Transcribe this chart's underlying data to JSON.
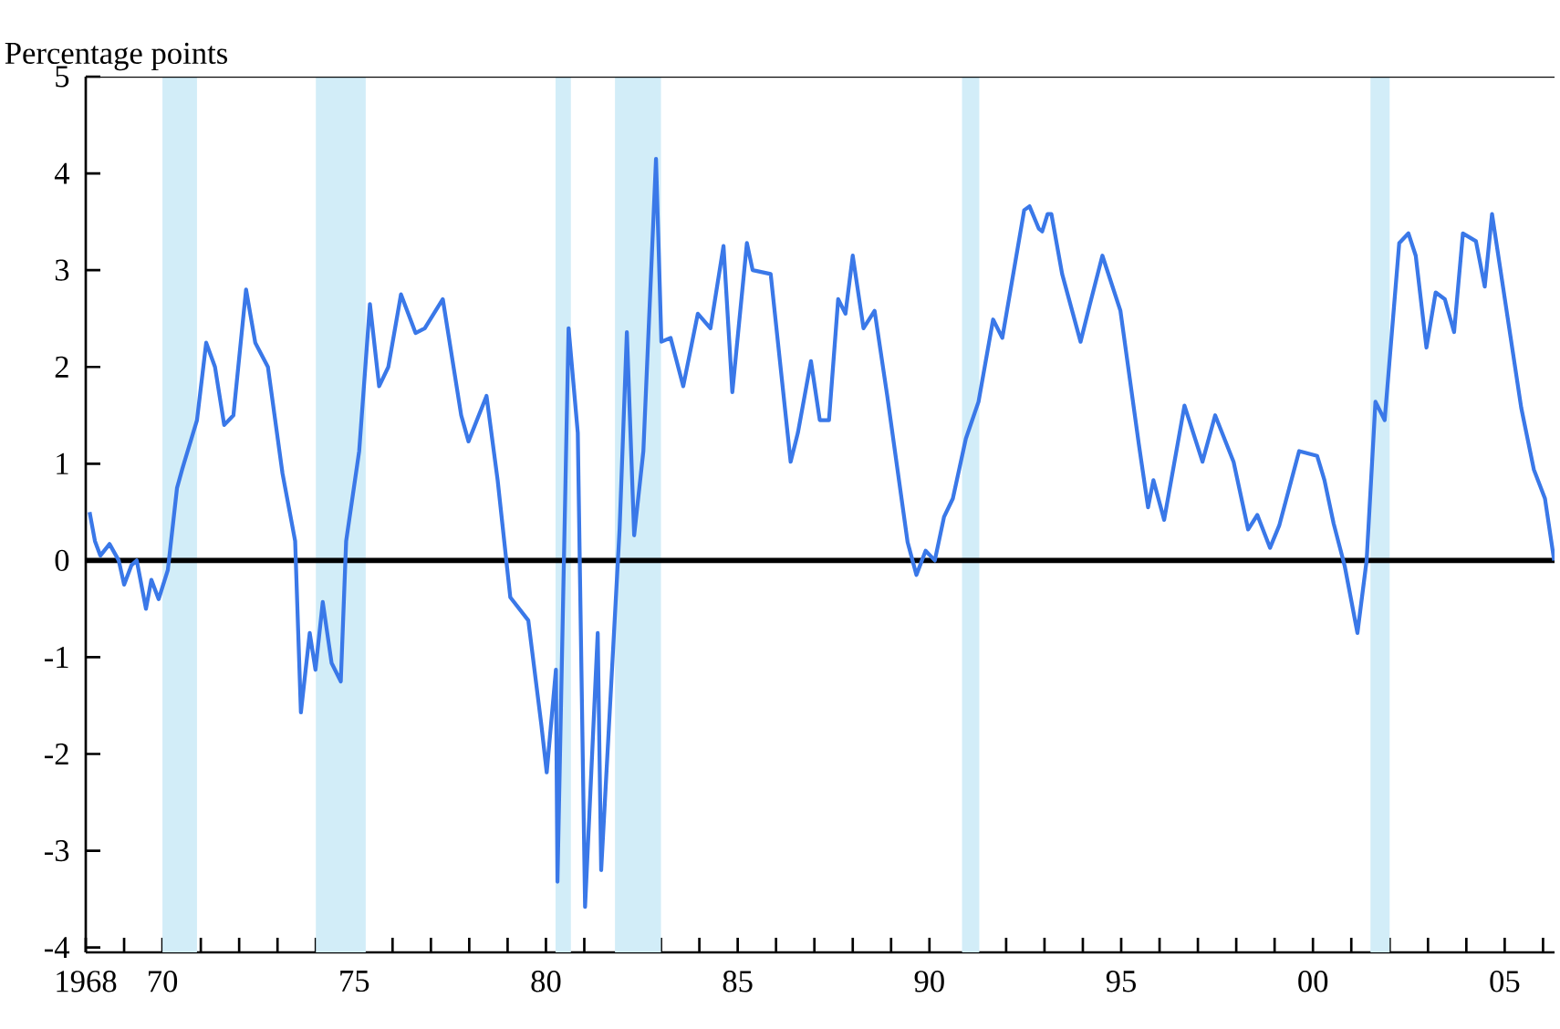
{
  "chart_data": {
    "type": "line",
    "ylabel": "Percentage points",
    "x": [
      1968.1,
      1968.24,
      1968.38,
      1968.62,
      1968.86,
      1969.0,
      1969.19,
      1969.33,
      1969.57,
      1969.71,
      1969.9,
      1970.14,
      1970.38,
      1970.52,
      1970.9,
      1971.14,
      1971.37,
      1971.61,
      1971.85,
      1972.18,
      1972.42,
      1972.75,
      1973.13,
      1973.46,
      1973.61,
      1973.84,
      1973.99,
      1974.18,
      1974.41,
      1974.65,
      1974.79,
      1975.13,
      1975.41,
      1975.65,
      1975.89,
      1976.22,
      1976.6,
      1976.84,
      1977.31,
      1977.79,
      1977.98,
      1978.45,
      1978.74,
      1979.07,
      1979.54,
      1979.88,
      1980.02,
      1980.26,
      1980.3,
      1980.59,
      1980.83,
      1981.02,
      1981.35,
      1981.44,
      1981.92,
      1982.11,
      1982.3,
      1982.54,
      1982.87,
      1983.01,
      1983.25,
      1983.58,
      1983.96,
      1984.29,
      1984.63,
      1984.86,
      1985.24,
      1985.39,
      1985.86,
      1986.38,
      1986.57,
      1986.91,
      1987.14,
      1987.38,
      1987.62,
      1987.81,
      1988.0,
      1988.28,
      1988.57,
      1988.9,
      1989.43,
      1989.66,
      1989.9,
      1990.14,
      1990.38,
      1990.61,
      1990.95,
      1991.28,
      1991.66,
      1991.9,
      1992.47,
      1992.61,
      1992.85,
      1992.94,
      1993.08,
      1993.18,
      1993.46,
      1993.94,
      1994.18,
      1994.51,
      1994.98,
      1995.46,
      1995.7,
      1995.84,
      1996.12,
      1996.65,
      1997.12,
      1997.45,
      1997.93,
      1998.31,
      1998.55,
      1998.88,
      1999.12,
      1999.64,
      2000.11,
      2000.3,
      2000.54,
      2000.83,
      2001.16,
      2001.4,
      2001.63,
      2001.87,
      2002.25,
      2002.49,
      2002.68,
      2002.96,
      2003.2,
      2003.44,
      2003.68,
      2003.91,
      2004.25,
      2004.48,
      2004.67,
      2005.05,
      2005.43,
      2005.76,
      2006.05,
      2006.29
    ],
    "series": [
      {
        "color": "#3a78e8",
        "values": [
          0.5,
          0.2,
          0.05,
          0.17,
          0,
          -0.25,
          -0.05,
          0,
          -0.5,
          -0.2,
          -0.4,
          -0.1,
          0.75,
          0.95,
          1.45,
          2.25,
          2.0,
          1.4,
          1.5,
          2.8,
          2.25,
          2.0,
          0.9,
          0.2,
          -1.57,
          -0.75,
          -1.13,
          -0.43,
          -1.06,
          -1.25,
          0.2,
          1.13,
          2.65,
          1.8,
          2.0,
          2.75,
          2.35,
          2.4,
          2.7,
          1.5,
          1.23,
          1.7,
          0.83,
          -0.38,
          -0.62,
          -1.7,
          -2.19,
          -1.13,
          -3.32,
          2.4,
          1.32,
          -3.58,
          -0.75,
          -3.2,
          0.32,
          2.36,
          0.26,
          1.13,
          4.15,
          2.26,
          2.3,
          1.8,
          2.55,
          2.4,
          3.25,
          1.74,
          3.28,
          3.0,
          2.96,
          1.02,
          1.32,
          2.06,
          1.45,
          1.45,
          2.7,
          2.55,
          3.15,
          2.4,
          2.58,
          1.7,
          0.19,
          -0.15,
          0.1,
          0,
          0.45,
          0.64,
          1.26,
          1.64,
          2.49,
          2.3,
          3.62,
          3.66,
          3.43,
          3.4,
          3.58,
          3.58,
          2.96,
          2.26,
          2.64,
          3.15,
          2.58,
          1.2,
          0.55,
          0.83,
          0.42,
          1.6,
          1.02,
          1.5,
          1.02,
          0.32,
          0.47,
          0.13,
          0.36,
          1.13,
          1.08,
          0.83,
          0.38,
          -0.06,
          -0.75,
          0,
          1.64,
          1.45,
          3.28,
          3.38,
          3.15,
          2.2,
          2.77,
          2.7,
          2.36,
          3.38,
          3.3,
          2.83,
          3.58,
          2.58,
          1.58,
          0.94,
          0.64,
          0
        ]
      }
    ],
    "xlim": [
      1968,
      2006.3
    ],
    "ylim": [
      -4.05,
      5
    ],
    "xticks": [
      {
        "value": 1969,
        "label": null
      },
      {
        "value": 1971,
        "label": null
      },
      {
        "value": 1972,
        "label": null
      },
      {
        "value": 1973,
        "label": null
      },
      {
        "value": 1974,
        "label": null
      },
      {
        "value": 1976,
        "label": null
      },
      {
        "value": 1977,
        "label": null
      },
      {
        "value": 1978,
        "label": null
      },
      {
        "value": 1979,
        "label": null
      },
      {
        "value": 1981,
        "label": null
      },
      {
        "value": 1982,
        "label": null
      },
      {
        "value": 1983,
        "label": null
      },
      {
        "value": 1984,
        "label": null
      },
      {
        "value": 1986,
        "label": null
      },
      {
        "value": 1987,
        "label": null
      },
      {
        "value": 1988,
        "label": null
      },
      {
        "value": 1989,
        "label": null
      },
      {
        "value": 1991,
        "label": null
      },
      {
        "value": 1992,
        "label": null
      },
      {
        "value": 1993,
        "label": null
      },
      {
        "value": 1994,
        "label": null
      },
      {
        "value": 1996,
        "label": null
      },
      {
        "value": 1997,
        "label": null
      },
      {
        "value": 1998,
        "label": null
      },
      {
        "value": 1999,
        "label": null
      },
      {
        "value": 2001,
        "label": null
      },
      {
        "value": 2002,
        "label": null
      },
      {
        "value": 2003,
        "label": null
      },
      {
        "value": 2004,
        "label": null
      },
      {
        "value": 2006,
        "label": null
      },
      {
        "value": 1968,
        "label": "1968"
      },
      {
        "value": 1970,
        "label": "70"
      },
      {
        "value": 1975,
        "label": "75"
      },
      {
        "value": 1980,
        "label": "80"
      },
      {
        "value": 1985,
        "label": "85"
      },
      {
        "value": 1990,
        "label": "90"
      },
      {
        "value": 1995,
        "label": "95"
      },
      {
        "value": 2000,
        "label": "00"
      },
      {
        "value": 2005,
        "label": "05"
      }
    ],
    "yticks": [
      -4,
      -3,
      -2,
      -1,
      0,
      1,
      2,
      3,
      4,
      5
    ],
    "ref_lines": [
      {
        "axis": "y",
        "value": 0,
        "color": "#000000"
      }
    ],
    "bands": [
      {
        "axis": "x",
        "from": 1970.0,
        "to": 1970.9,
        "color": "#d2edf8"
      },
      {
        "axis": "x",
        "from": 1974.0,
        "to": 1975.3,
        "color": "#d2edf8"
      },
      {
        "axis": "x",
        "from": 1980.25,
        "to": 1980.65,
        "color": "#d2edf8"
      },
      {
        "axis": "x",
        "from": 1981.8,
        "to": 1983.0,
        "color": "#d2edf8"
      },
      {
        "axis": "x",
        "from": 1990.85,
        "to": 1991.3,
        "color": "#d2edf8"
      },
      {
        "axis": "x",
        "from": 2001.5,
        "to": 2002.0,
        "color": "#d2edf8"
      }
    ],
    "grid": false,
    "marker": "none",
    "line_style": "solid"
  }
}
